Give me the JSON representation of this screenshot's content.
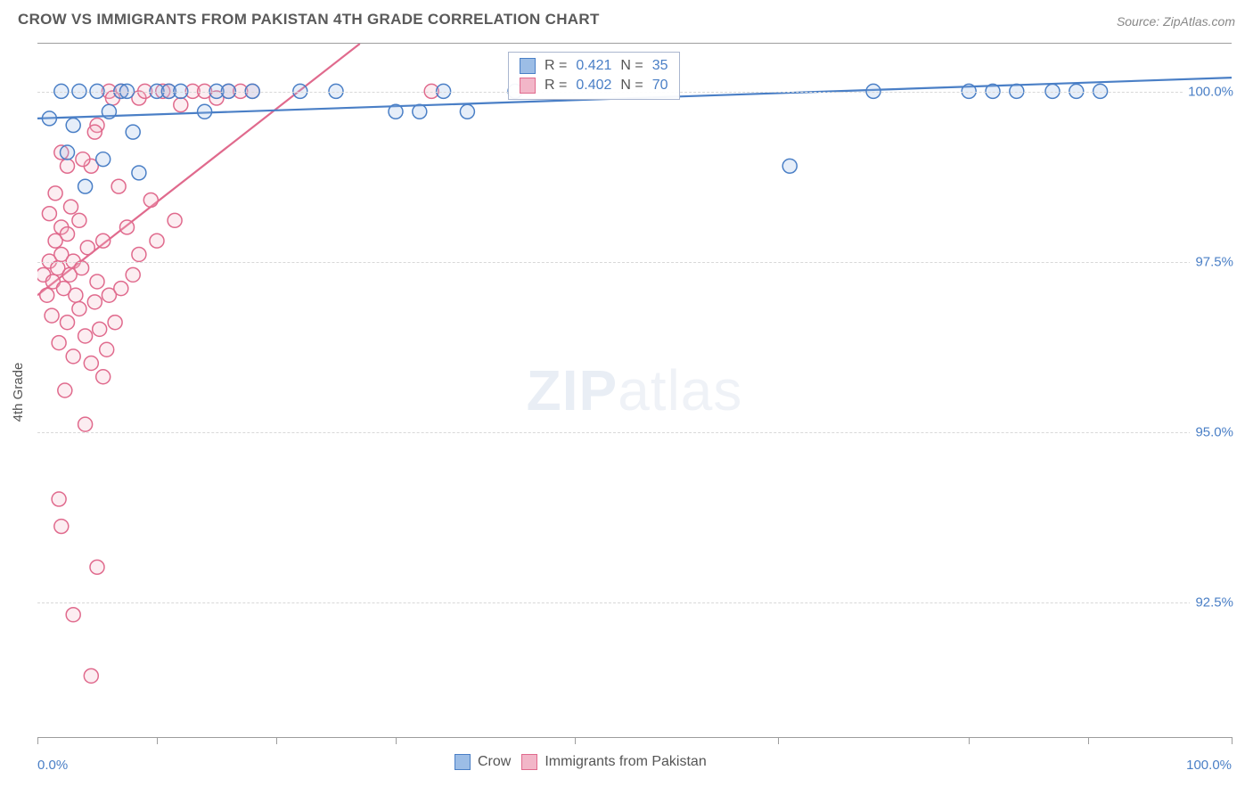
{
  "header": {
    "title": "CROW VS IMMIGRANTS FROM PAKISTAN 4TH GRADE CORRELATION CHART",
    "source": "Source: ZipAtlas.com"
  },
  "ylabel": "4th Grade",
  "watermark": {
    "bold": "ZIP",
    "rest": "atlas"
  },
  "chart": {
    "type": "scatter",
    "xlim": [
      0,
      100
    ],
    "ylim": [
      90.5,
      100.7
    ],
    "xaxis_label_left": "0.0%",
    "xaxis_label_right": "100.0%",
    "xtick_positions": [
      0,
      10,
      20,
      30,
      45,
      62,
      78,
      88,
      100
    ],
    "yticks": [
      {
        "v": 100.0,
        "label": "100.0%"
      },
      {
        "v": 97.5,
        "label": "97.5%"
      },
      {
        "v": 95.0,
        "label": "95.0%"
      },
      {
        "v": 92.5,
        "label": "92.5%"
      }
    ],
    "grid_color": "#d8d8d8",
    "marker_radius": 8,
    "marker_stroke_width": 1.5,
    "marker_fill_opacity": 0.25,
    "series": [
      {
        "name": "Crow",
        "color_stroke": "#4a7fc6",
        "color_fill": "#9cbde6",
        "R": "0.421",
        "N": "35",
        "trend": {
          "x1": 0,
          "y1": 99.6,
          "x2": 100,
          "y2": 100.2,
          "width": 2.2
        },
        "points": [
          [
            1,
            99.6
          ],
          [
            2,
            100.0
          ],
          [
            2.5,
            99.1
          ],
          [
            3,
            99.5
          ],
          [
            3.5,
            100.0
          ],
          [
            4,
            98.6
          ],
          [
            5,
            100.0
          ],
          [
            5.5,
            99.0
          ],
          [
            6,
            99.7
          ],
          [
            7,
            100.0
          ],
          [
            7.5,
            100.0
          ],
          [
            8,
            99.4
          ],
          [
            8.5,
            98.8
          ],
          [
            10,
            100.0
          ],
          [
            11,
            100.0
          ],
          [
            12,
            100.0
          ],
          [
            14,
            99.7
          ],
          [
            15,
            100.0
          ],
          [
            16,
            100.0
          ],
          [
            18,
            100.0
          ],
          [
            22,
            100.0
          ],
          [
            25,
            100.0
          ],
          [
            30,
            99.7
          ],
          [
            32,
            99.7
          ],
          [
            34,
            100.0
          ],
          [
            36,
            99.7
          ],
          [
            40,
            100.0
          ],
          [
            63,
            98.9
          ],
          [
            70,
            100.0
          ],
          [
            78,
            100.0
          ],
          [
            80,
            100.0
          ],
          [
            82,
            100.0
          ],
          [
            85,
            100.0
          ],
          [
            87,
            100.0
          ],
          [
            89,
            100.0
          ]
        ]
      },
      {
        "name": "Immigrants from Pakistan",
        "color_stroke": "#e06a8d",
        "color_fill": "#f2b6c8",
        "R": "0.402",
        "N": "70",
        "trend": {
          "x1": 0,
          "y1": 97.0,
          "x2": 27,
          "y2": 100.7,
          "width": 2.2
        },
        "points": [
          [
            0.5,
            97.3
          ],
          [
            0.8,
            97.0
          ],
          [
            1,
            97.5
          ],
          [
            1,
            98.2
          ],
          [
            1.2,
            96.7
          ],
          [
            1.3,
            97.2
          ],
          [
            1.5,
            97.8
          ],
          [
            1.5,
            98.5
          ],
          [
            1.7,
            97.4
          ],
          [
            1.8,
            96.3
          ],
          [
            2,
            97.6
          ],
          [
            2,
            98.0
          ],
          [
            2,
            99.1
          ],
          [
            2.2,
            97.1
          ],
          [
            2.3,
            95.6
          ],
          [
            2.5,
            97.9
          ],
          [
            2.5,
            96.6
          ],
          [
            2.7,
            97.3
          ],
          [
            2.8,
            98.3
          ],
          [
            3,
            97.5
          ],
          [
            3,
            96.1
          ],
          [
            3.2,
            97.0
          ],
          [
            3.5,
            96.8
          ],
          [
            3.5,
            98.1
          ],
          [
            3.7,
            97.4
          ],
          [
            4,
            96.4
          ],
          [
            4,
            95.1
          ],
          [
            4.2,
            97.7
          ],
          [
            4.5,
            96.0
          ],
          [
            4.5,
            98.9
          ],
          [
            4.8,
            96.9
          ],
          [
            5,
            97.2
          ],
          [
            5,
            99.5
          ],
          [
            5.2,
            96.5
          ],
          [
            5.5,
            97.8
          ],
          [
            5.5,
            95.8
          ],
          [
            5.8,
            96.2
          ],
          [
            6,
            97.0
          ],
          [
            6,
            100.0
          ],
          [
            6.3,
            99.9
          ],
          [
            6.5,
            96.6
          ],
          [
            7,
            97.1
          ],
          [
            7,
            100.0
          ],
          [
            7.5,
            98.0
          ],
          [
            8,
            97.3
          ],
          [
            8.5,
            99.9
          ],
          [
            9,
            100.0
          ],
          [
            9.5,
            98.4
          ],
          [
            10,
            97.8
          ],
          [
            10.5,
            100.0
          ],
          [
            11,
            100.0
          ],
          [
            11.5,
            98.1
          ],
          [
            12,
            99.8
          ],
          [
            13,
            100.0
          ],
          [
            14,
            100.0
          ],
          [
            15,
            99.9
          ],
          [
            16,
            100.0
          ],
          [
            17,
            100.0
          ],
          [
            18,
            100.0
          ],
          [
            33,
            100.0
          ],
          [
            2,
            93.6
          ],
          [
            3,
            92.3
          ],
          [
            4.5,
            91.4
          ],
          [
            5,
            93.0
          ],
          [
            1.8,
            94.0
          ],
          [
            2.5,
            98.9
          ],
          [
            3.8,
            99.0
          ],
          [
            4.8,
            99.4
          ],
          [
            6.8,
            98.6
          ],
          [
            8.5,
            97.6
          ]
        ]
      }
    ]
  },
  "legend_top": {
    "r_label": "R  =",
    "n_label": "N  ="
  },
  "legend_bottom": {
    "items": [
      "Crow",
      "Immigrants from Pakistan"
    ]
  }
}
